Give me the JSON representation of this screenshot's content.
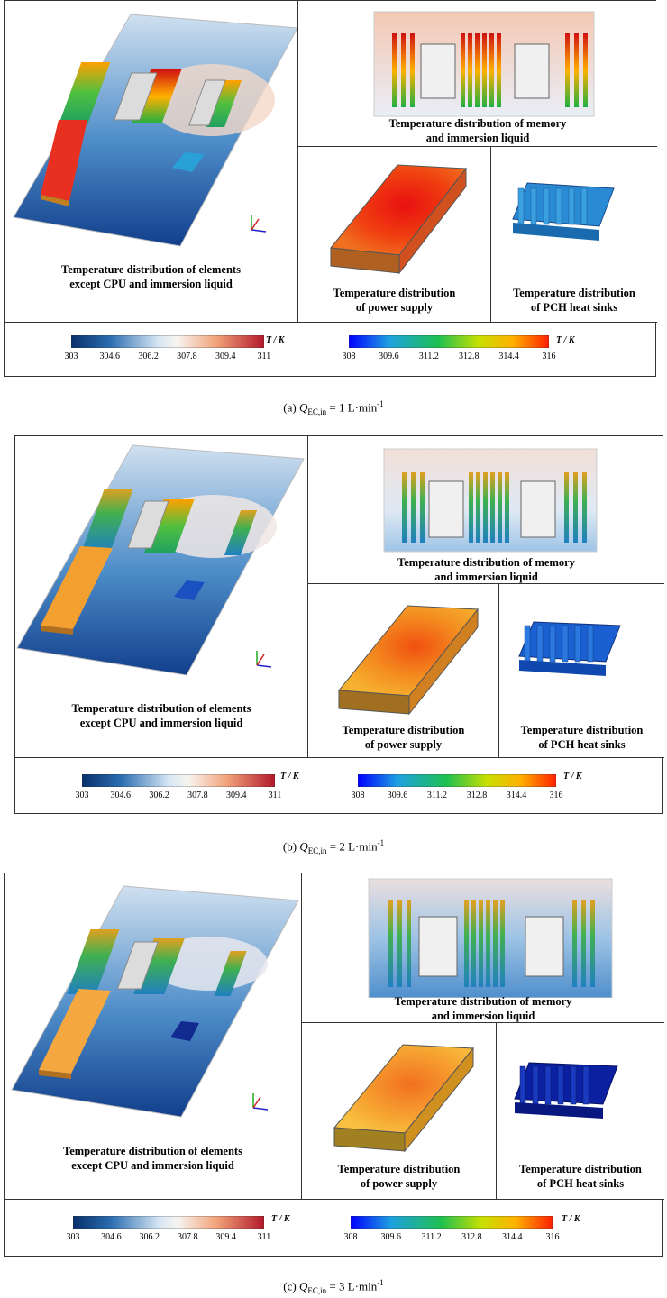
{
  "shared_labels": {
    "elements_line1": "Temperature distribution of elements",
    "elements_line2": "except CPU and immersion liquid",
    "memory_line1": "Temperature distribution of  memory",
    "memory_line2": "and  immersion liquid",
    "power_line1": "Temperature distribution",
    "power_line2": "of power supply",
    "pch_line1": "Temperature distribution",
    "pch_line2": "of PCH heat sinks",
    "unit": "T / K",
    "axis_x": "x",
    "axis_y": "y",
    "axis_z": "z"
  },
  "colorbar_left": {
    "ticks": [
      "303",
      "304.6",
      "306.2",
      "307.8",
      "309.4",
      "311"
    ],
    "colors": [
      "#08306b",
      "#2b6cb0",
      "#9cc4e4",
      "#f7f4f0",
      "#f2a37a",
      "#b2182b"
    ]
  },
  "colorbar_right": {
    "ticks": [
      "308",
      "309.6",
      "311.2",
      "312.8",
      "314.4",
      "316"
    ],
    "colors": [
      "#0000ff",
      "#1ea0e0",
      "#1fc050",
      "#c8e000",
      "#ffb000",
      "#ff2000"
    ]
  },
  "panels": [
    {
      "caption_prefix": "(a) ",
      "caption_q": "Q",
      "caption_sub": "EC,in",
      "caption_value": " = 1 L·min",
      "caption_sup": "-1"
    },
    {
      "caption_prefix": "(b) ",
      "caption_q": "Q",
      "caption_sub": "EC,in",
      "caption_value": " = 2 L·min",
      "caption_sup": "-1"
    },
    {
      "caption_prefix": "(c) ",
      "caption_q": "Q",
      "caption_sub": "EC,in",
      "caption_value": " = 3 L·min",
      "caption_sup": "-1"
    }
  ]
}
